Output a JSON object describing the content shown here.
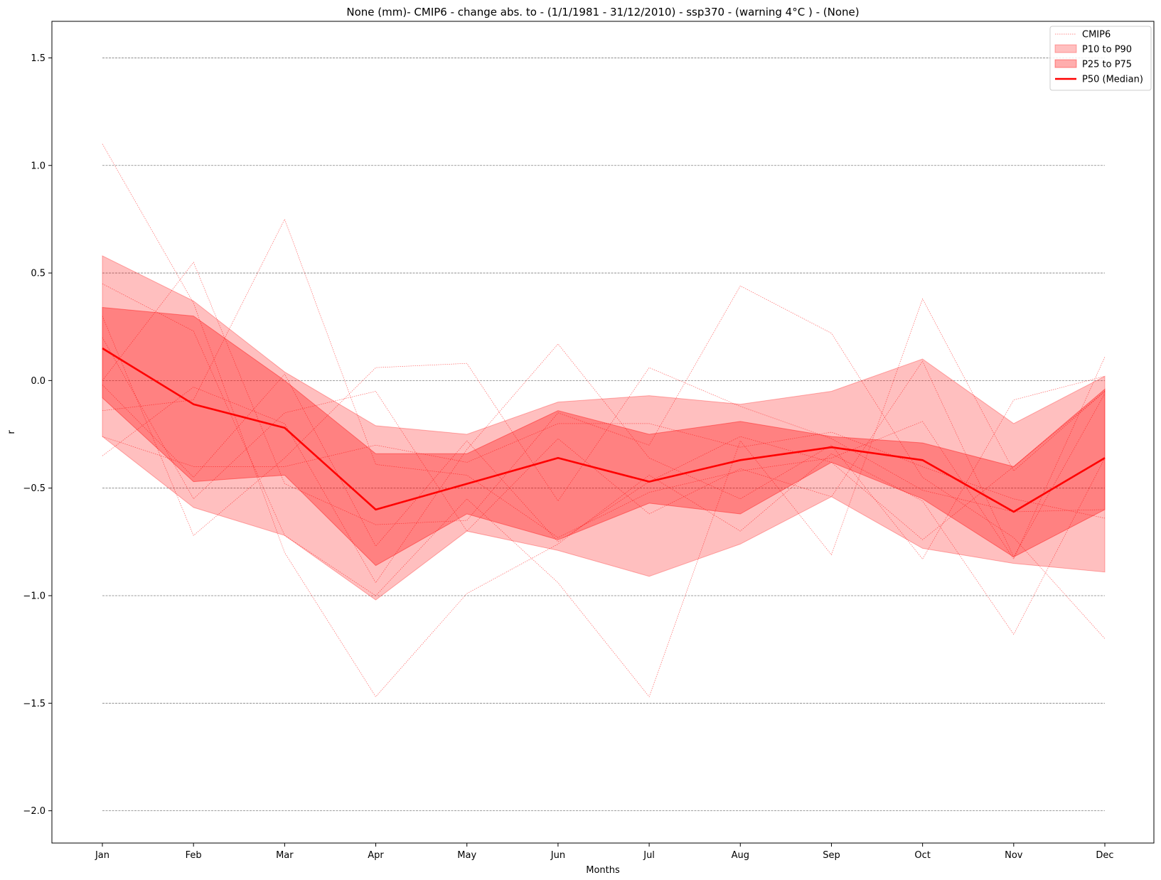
{
  "chart_data": {
    "type": "line",
    "title": "None (mm)- CMIP6 - change abs. to - (1/1/1981 - 31/12/2010)  - ssp370  - (warning 4°C ) - (None)",
    "xlabel": "Months",
    "ylabel": "r",
    "categories": [
      "Jan",
      "Feb",
      "Mar",
      "Apr",
      "May",
      "Jun",
      "Jul",
      "Aug",
      "Sep",
      "Oct",
      "Nov",
      "Dec"
    ],
    "ylim": [
      -2.15,
      1.67
    ],
    "yticks": [
      -2.0,
      -1.5,
      -1.0,
      -0.5,
      0.0,
      0.5,
      1.0,
      1.5
    ],
    "ytick_labels": [
      "−2.0",
      "−1.5",
      "−1.0",
      "−0.5",
      "0.0",
      "0.5",
      "1.0",
      "1.5"
    ],
    "grid": "horizontal dashed",
    "legend_position": "top-right",
    "legend": [
      "CMIP6",
      "P10 to P90",
      "P25 to P75",
      "P50 (Median)"
    ],
    "colors": {
      "median": "#ff0000",
      "band_p10_p90": "#ff7f7f",
      "band_p25_p75": "#ff5050",
      "models": "#ff0000",
      "grid": "#808080"
    },
    "bands": {
      "p10": [
        -0.26,
        -0.59,
        -0.72,
        -1.02,
        -0.7,
        -0.79,
        -0.91,
        -0.76,
        -0.54,
        -0.78,
        -0.85,
        -0.89
      ],
      "p90": [
        0.58,
        0.37,
        0.04,
        -0.21,
        -0.25,
        -0.1,
        -0.07,
        -0.11,
        -0.05,
        0.1,
        -0.2,
        0.02
      ],
      "p25": [
        -0.08,
        -0.47,
        -0.44,
        -0.86,
        -0.62,
        -0.74,
        -0.57,
        -0.62,
        -0.38,
        -0.55,
        -0.82,
        -0.6
      ],
      "p75": [
        0.34,
        0.3,
        0.0,
        -0.34,
        -0.34,
        -0.14,
        -0.25,
        -0.19,
        -0.26,
        -0.29,
        -0.4,
        -0.04
      ]
    },
    "series": [
      {
        "name": "P50 (Median)",
        "values": [
          0.15,
          -0.11,
          -0.22,
          -0.6,
          -0.48,
          -0.36,
          -0.47,
          -0.37,
          -0.31,
          -0.37,
          -0.61,
          -0.36
        ]
      },
      {
        "name": "CMIP6",
        "models": [
          [
            1.1,
            0.36,
            -0.8,
            -1.47,
            -0.99,
            -0.76,
            -0.44,
            -0.7,
            -0.34,
            -0.56,
            -1.18,
            -0.36
          ],
          [
            -0.35,
            -0.03,
            -0.2,
            -0.94,
            -0.32,
            0.17,
            -0.36,
            -0.55,
            -0.3,
            -0.83,
            -0.09,
            0.02
          ],
          [
            0.0,
            0.55,
            -0.48,
            -0.67,
            -0.65,
            -0.15,
            -0.3,
            0.44,
            0.22,
            -0.45,
            -0.73,
            -1.2
          ],
          [
            0.45,
            0.23,
            -0.72,
            -1.0,
            -0.55,
            -0.94,
            -1.47,
            -0.28,
            -0.81,
            0.38,
            -0.42,
            -0.05
          ],
          [
            -0.14,
            -0.09,
            0.75,
            -0.39,
            -0.44,
            -0.73,
            -0.52,
            -0.42,
            -0.36,
            -0.19,
            -0.83,
            0.11
          ],
          [
            -0.26,
            -0.4,
            -0.4,
            -0.3,
            -0.38,
            -0.2,
            -0.2,
            -0.31,
            -0.24,
            -0.4,
            -0.55,
            -0.64
          ],
          [
            0.3,
            -0.72,
            -0.36,
            0.06,
            0.08,
            -0.56,
            0.06,
            -0.12,
            -0.27,
            -0.51,
            -0.61,
            -0.6
          ],
          [
            0.2,
            -0.55,
            -0.15,
            -0.05,
            -0.7,
            -0.27,
            -0.62,
            -0.41,
            -0.54,
            0.09,
            -0.82,
            -0.06
          ],
          [
            -0.02,
            -0.45,
            0.03,
            -0.77,
            -0.28,
            -0.75,
            -0.47,
            -0.26,
            -0.38,
            -0.74,
            -0.4,
            -0.05
          ]
        ]
      }
    ]
  }
}
